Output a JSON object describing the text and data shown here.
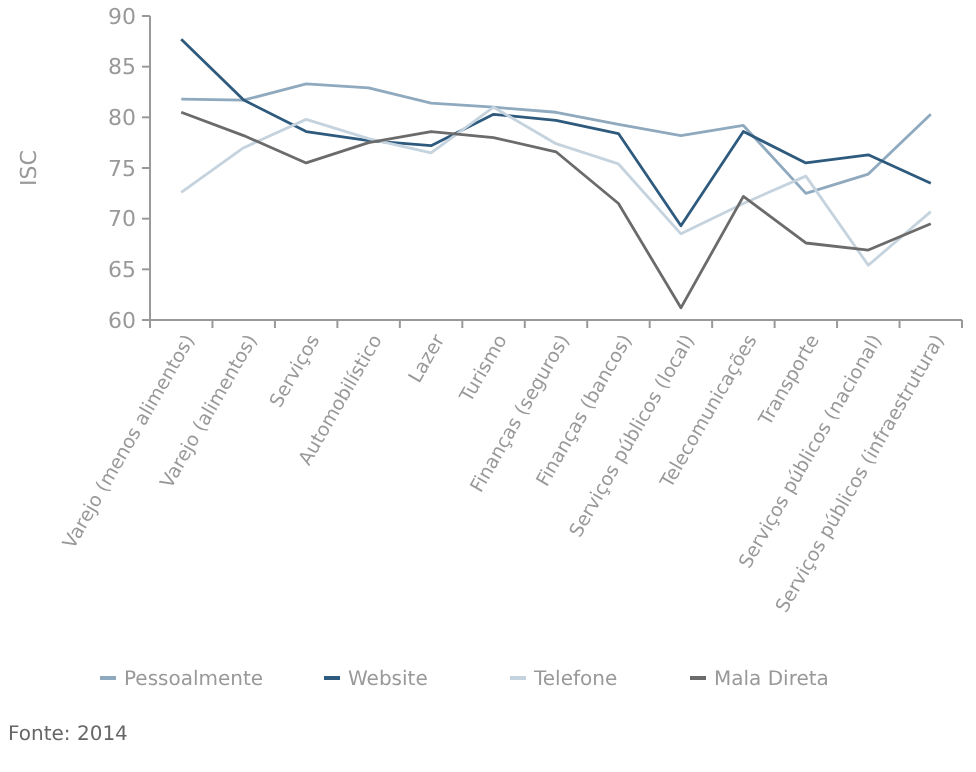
{
  "chart_data": {
    "type": "line",
    "ylabel": "ISC",
    "annotations": [
      "Fonte: 2014"
    ],
    "categories": [
      "Varejo (menos alimentos)",
      "Varejo (alimentos)",
      "Serviços",
      "Automobilístico",
      "Lazer",
      "Turismo",
      "Finanças (seguros)",
      "Finanças (bancos)",
      "Serviços públicos (local)",
      "Telecomunicações",
      "Transporte",
      "Serviços públicos (nacional)",
      "Serviços públicos (infraestrutura)"
    ],
    "series": [
      {
        "name": "Pessoalmente",
        "color": "#8fa9bf",
        "values": [
          81.8,
          81.7,
          83.3,
          82.9,
          81.4,
          81,
          80.5,
          79.3,
          78.2,
          79.2,
          72.5,
          74.4,
          80.3
        ]
      },
      {
        "name": "Website",
        "color": "#2e5a7e",
        "values": [
          87.7,
          81.7,
          78.6,
          77.7,
          77.2,
          80.3,
          79.7,
          78.4,
          69.3,
          78.6,
          75.5,
          76.3,
          73.5
        ]
      },
      {
        "name": "Telefone",
        "color": "#c5d3de",
        "values": [
          72.6,
          77,
          79.8,
          77.9,
          76.5,
          81,
          77.4,
          75.4,
          68.5,
          71.5,
          74.2,
          65.4,
          70.7
        ]
      },
      {
        "name": "Mala Direta",
        "color": "#6b6b6b",
        "values": [
          80.5,
          78.2,
          75.5,
          77.5,
          78.6,
          78,
          76.6,
          71.5,
          61.2,
          72.2,
          67.6,
          66.9,
          69.5
        ]
      }
    ],
    "ylim": [
      60,
      90
    ],
    "yticks": [
      60,
      65,
      70,
      75,
      80,
      85,
      90
    ],
    "grid": false,
    "legend": "bottom",
    "marker": "none",
    "line_style": "solid"
  }
}
